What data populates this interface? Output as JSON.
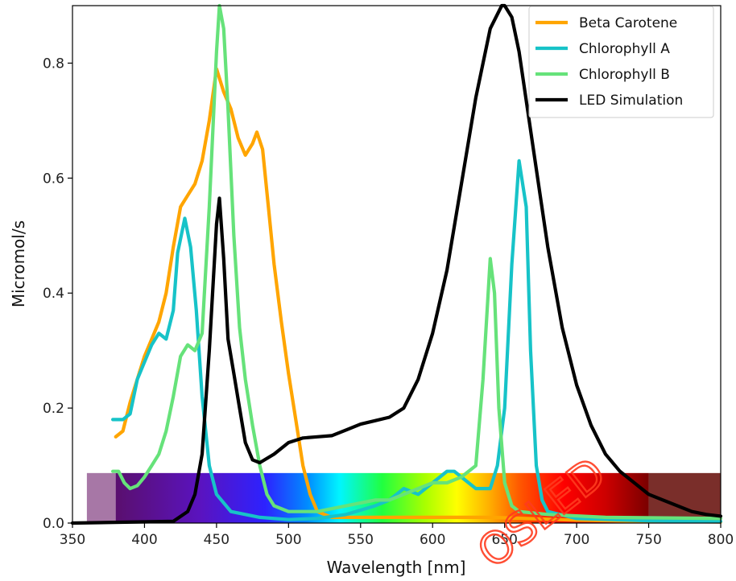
{
  "chart_data": {
    "type": "line",
    "title": "",
    "xlabel": "Wavelength [nm]",
    "ylabel": "Micromol/s",
    "xlim": [
      350,
      800
    ],
    "ylim": [
      0,
      0.9
    ],
    "x_ticks": [
      350,
      400,
      450,
      500,
      550,
      600,
      650,
      700,
      750,
      800
    ],
    "y_ticks": [
      0.0,
      0.2,
      0.4,
      0.6,
      0.8
    ],
    "y_tick_labels": [
      "0.0",
      "0.2",
      "0.4",
      "0.6",
      "0.8"
    ],
    "grid": false,
    "legend_position": "top-right",
    "spectrum_band": {
      "x_range": [
        360,
        800
      ],
      "height": 0.087,
      "uv_range": [
        360,
        380
      ],
      "ir_range": [
        750,
        800
      ]
    },
    "series": [
      {
        "name": "Beta Carotene",
        "color": "#ffa500",
        "points": [
          [
            380,
            0.15
          ],
          [
            385,
            0.16
          ],
          [
            390,
            0.21
          ],
          [
            395,
            0.25
          ],
          [
            400,
            0.29
          ],
          [
            405,
            0.32
          ],
          [
            410,
            0.35
          ],
          [
            415,
            0.4
          ],
          [
            420,
            0.48
          ],
          [
            425,
            0.55
          ],
          [
            430,
            0.57
          ],
          [
            435,
            0.59
          ],
          [
            440,
            0.63
          ],
          [
            445,
            0.7
          ],
          [
            450,
            0.79
          ],
          [
            455,
            0.75
          ],
          [
            460,
            0.72
          ],
          [
            465,
            0.67
          ],
          [
            470,
            0.64
          ],
          [
            475,
            0.66
          ],
          [
            478,
            0.68
          ],
          [
            482,
            0.65
          ],
          [
            486,
            0.55
          ],
          [
            490,
            0.45
          ],
          [
            495,
            0.35
          ],
          [
            500,
            0.26
          ],
          [
            505,
            0.18
          ],
          [
            510,
            0.1
          ],
          [
            515,
            0.05
          ],
          [
            520,
            0.02
          ],
          [
            530,
            0.01
          ],
          [
            560,
            0.01
          ],
          [
            600,
            0.01
          ],
          [
            640,
            0.01
          ],
          [
            700,
            0.005
          ],
          [
            750,
            0.003
          ],
          [
            800,
            0.002
          ]
        ]
      },
      {
        "name": "Chlorophyll A",
        "color": "#17c3c8",
        "points": [
          [
            378,
            0.18
          ],
          [
            385,
            0.18
          ],
          [
            390,
            0.19
          ],
          [
            395,
            0.25
          ],
          [
            400,
            0.28
          ],
          [
            405,
            0.31
          ],
          [
            410,
            0.33
          ],
          [
            415,
            0.32
          ],
          [
            420,
            0.37
          ],
          [
            423,
            0.47
          ],
          [
            428,
            0.53
          ],
          [
            432,
            0.48
          ],
          [
            436,
            0.37
          ],
          [
            440,
            0.22
          ],
          [
            445,
            0.1
          ],
          [
            450,
            0.05
          ],
          [
            460,
            0.02
          ],
          [
            480,
            0.01
          ],
          [
            500,
            0.006
          ],
          [
            520,
            0.008
          ],
          [
            540,
            0.015
          ],
          [
            560,
            0.03
          ],
          [
            570,
            0.04
          ],
          [
            580,
            0.06
          ],
          [
            590,
            0.05
          ],
          [
            600,
            0.07
          ],
          [
            605,
            0.08
          ],
          [
            610,
            0.09
          ],
          [
            615,
            0.09
          ],
          [
            620,
            0.08
          ],
          [
            630,
            0.06
          ],
          [
            640,
            0.06
          ],
          [
            645,
            0.1
          ],
          [
            650,
            0.2
          ],
          [
            655,
            0.45
          ],
          [
            660,
            0.63
          ],
          [
            665,
            0.55
          ],
          [
            668,
            0.3
          ],
          [
            672,
            0.1
          ],
          [
            676,
            0.04
          ],
          [
            680,
            0.02
          ],
          [
            700,
            0.008
          ],
          [
            750,
            0.004
          ],
          [
            800,
            0.003
          ]
        ]
      },
      {
        "name": "Chlorophyll B",
        "color": "#66e27a",
        "points": [
          [
            378,
            0.09
          ],
          [
            382,
            0.09
          ],
          [
            386,
            0.07
          ],
          [
            390,
            0.06
          ],
          [
            395,
            0.065
          ],
          [
            400,
            0.08
          ],
          [
            405,
            0.1
          ],
          [
            410,
            0.12
          ],
          [
            415,
            0.16
          ],
          [
            420,
            0.22
          ],
          [
            425,
            0.29
          ],
          [
            430,
            0.31
          ],
          [
            435,
            0.3
          ],
          [
            440,
            0.33
          ],
          [
            445,
            0.55
          ],
          [
            450,
            0.82
          ],
          [
            452,
            0.9
          ],
          [
            455,
            0.86
          ],
          [
            458,
            0.72
          ],
          [
            462,
            0.5
          ],
          [
            466,
            0.34
          ],
          [
            470,
            0.25
          ],
          [
            475,
            0.17
          ],
          [
            480,
            0.1
          ],
          [
            485,
            0.05
          ],
          [
            490,
            0.03
          ],
          [
            500,
            0.02
          ],
          [
            520,
            0.02
          ],
          [
            540,
            0.03
          ],
          [
            560,
            0.04
          ],
          [
            570,
            0.04
          ],
          [
            580,
            0.05
          ],
          [
            590,
            0.06
          ],
          [
            600,
            0.07
          ],
          [
            610,
            0.07
          ],
          [
            620,
            0.08
          ],
          [
            630,
            0.1
          ],
          [
            635,
            0.25
          ],
          [
            640,
            0.46
          ],
          [
            643,
            0.4
          ],
          [
            646,
            0.2
          ],
          [
            650,
            0.07
          ],
          [
            655,
            0.03
          ],
          [
            660,
            0.02
          ],
          [
            680,
            0.015
          ],
          [
            720,
            0.01
          ],
          [
            800,
            0.008
          ]
        ]
      },
      {
        "name": "LED Simulation",
        "color": "#000000",
        "points": [
          [
            350,
            0.0
          ],
          [
            420,
            0.003
          ],
          [
            430,
            0.02
          ],
          [
            435,
            0.05
          ],
          [
            440,
            0.12
          ],
          [
            445,
            0.3
          ],
          [
            450,
            0.52
          ],
          [
            452,
            0.565
          ],
          [
            455,
            0.46
          ],
          [
            458,
            0.32
          ],
          [
            462,
            0.26
          ],
          [
            466,
            0.2
          ],
          [
            470,
            0.14
          ],
          [
            475,
            0.11
          ],
          [
            480,
            0.105
          ],
          [
            490,
            0.12
          ],
          [
            500,
            0.14
          ],
          [
            510,
            0.148
          ],
          [
            520,
            0.15
          ],
          [
            530,
            0.152
          ],
          [
            540,
            0.162
          ],
          [
            550,
            0.172
          ],
          [
            560,
            0.178
          ],
          [
            570,
            0.184
          ],
          [
            580,
            0.2
          ],
          [
            590,
            0.25
          ],
          [
            600,
            0.33
          ],
          [
            610,
            0.44
          ],
          [
            620,
            0.59
          ],
          [
            630,
            0.74
          ],
          [
            640,
            0.86
          ],
          [
            648,
            0.9
          ],
          [
            650,
            0.9
          ],
          [
            655,
            0.88
          ],
          [
            660,
            0.82
          ],
          [
            670,
            0.65
          ],
          [
            680,
            0.48
          ],
          [
            690,
            0.34
          ],
          [
            700,
            0.24
          ],
          [
            710,
            0.17
          ],
          [
            720,
            0.12
          ],
          [
            730,
            0.09
          ],
          [
            740,
            0.07
          ],
          [
            750,
            0.05
          ],
          [
            760,
            0.04
          ],
          [
            770,
            0.03
          ],
          [
            780,
            0.02
          ],
          [
            790,
            0.015
          ],
          [
            800,
            0.012
          ]
        ]
      }
    ]
  },
  "watermark": {
    "text": "OSLED",
    "color": "#ff3b1f"
  }
}
